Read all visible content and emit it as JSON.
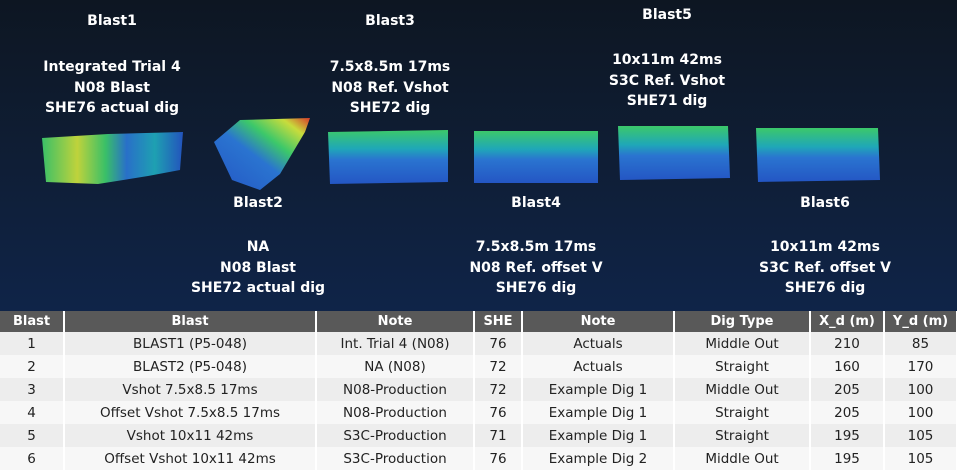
{
  "blasts": [
    {
      "id": "blast1",
      "name": "Blast1",
      "lines": [
        "Integrated Trial 4",
        "N08 Blast",
        "SHE76 actual dig"
      ]
    },
    {
      "id": "blast2",
      "name": "Blast2",
      "lines": [
        "NA",
        "N08 Blast",
        "SHE72 actual dig"
      ]
    },
    {
      "id": "blast3",
      "name": "Blast3",
      "lines": [
        "7.5x8.5m 17ms",
        "N08 Ref. Vshot",
        "SHE72 dig"
      ]
    },
    {
      "id": "blast4",
      "name": "Blast4",
      "lines": [
        "7.5x8.5m 17ms",
        "N08 Ref. offset V",
        "SHE76 dig"
      ]
    },
    {
      "id": "blast5",
      "name": "Blast5",
      "lines": [
        "10x11m 42ms",
        "S3C Ref. Vshot",
        "SHE71 dig"
      ]
    },
    {
      "id": "blast6",
      "name": "Blast6",
      "lines": [
        "10x11m 42ms",
        "S3C Ref. offset V",
        "SHE76 dig"
      ]
    }
  ],
  "colors": {
    "blue": "#2456c4",
    "cyan": "#1fa7b8",
    "green": "#3cc86a",
    "yellow": "#c8dc3c",
    "red": "#d83a2a",
    "header_bg": "#595959"
  },
  "table": {
    "headers": [
      "Blast",
      "Blast",
      "Note",
      "SHE",
      "Note",
      "Dig Type",
      "X_d (m)",
      "Y_d (m)"
    ],
    "rows": [
      [
        "1",
        "BLAST1 (P5-048)",
        "Int. Trial 4 (N08)",
        "76",
        "Actuals",
        "Middle Out",
        "210",
        "85"
      ],
      [
        "2",
        "BLAST2 (P5-048)",
        "NA (N08)",
        "72",
        "Actuals",
        "Straight",
        "160",
        "170"
      ],
      [
        "3",
        "Vshot 7.5x8.5 17ms",
        "N08-Production",
        "72",
        "Example Dig 1",
        "Middle Out",
        "205",
        "100"
      ],
      [
        "4",
        "Offset Vshot 7.5x8.5 17ms",
        "N08-Production",
        "76",
        "Example Dig 1",
        "Straight",
        "205",
        "100"
      ],
      [
        "5",
        "Vshot 10x11 42ms",
        "S3C-Production",
        "71",
        "Example Dig 1",
        "Straight",
        "195",
        "105"
      ],
      [
        "6",
        "Offset Vshot 10x11 42ms",
        "S3C-Production",
        "76",
        "Example Dig 2",
        "Middle Out",
        "195",
        "105"
      ]
    ]
  }
}
